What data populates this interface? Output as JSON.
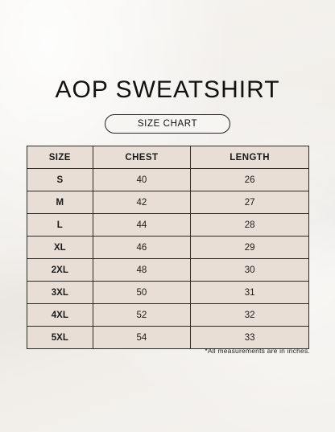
{
  "title": "AOP SWEATSHIRT",
  "subtitle": "SIZE CHART",
  "table": {
    "headers": [
      "SIZE",
      "CHEST",
      "LENGTH"
    ],
    "rows": [
      [
        "S",
        "40",
        "26"
      ],
      [
        "M",
        "42",
        "27"
      ],
      [
        "L",
        "44",
        "28"
      ],
      [
        "XL",
        "46",
        "29"
      ],
      [
        "2XL",
        "48",
        "30"
      ],
      [
        "3XL",
        "50",
        "31"
      ],
      [
        "4XL",
        "52",
        "32"
      ],
      [
        "5XL",
        "54",
        "33"
      ]
    ]
  },
  "note": "*All measurements are in inches.",
  "colors": {
    "background": "#f3f1ed",
    "table_fill": "#e8ded6",
    "border": "#2a2a2a",
    "text": "#1a1a1a"
  }
}
